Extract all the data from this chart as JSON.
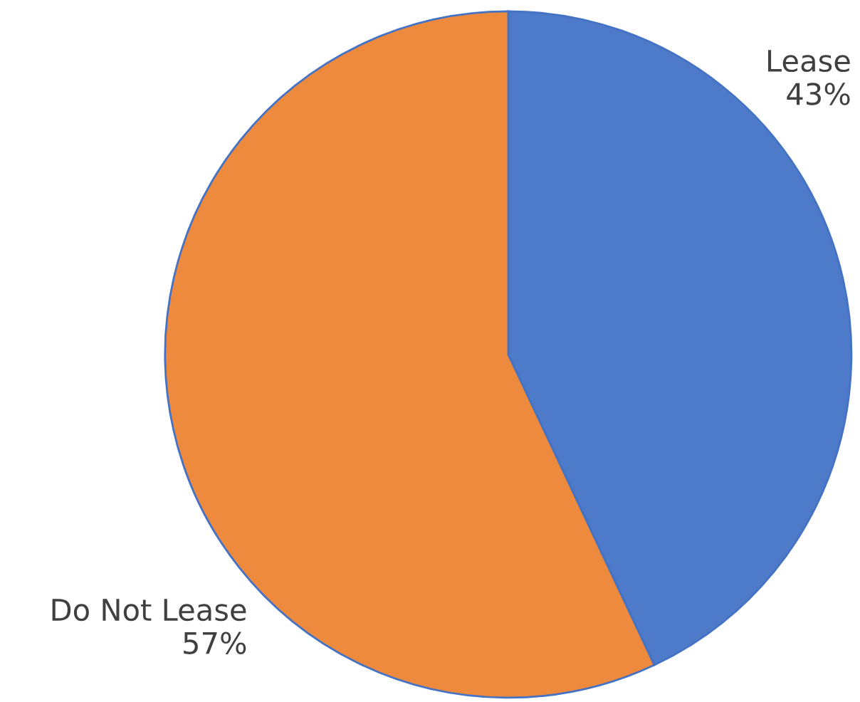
{
  "chart_data": {
    "type": "pie",
    "categories": [
      "Lease",
      "Do Not Lease"
    ],
    "values": [
      43,
      57
    ],
    "colors": [
      "#4d7bc9",
      "#ee8a3d"
    ],
    "value_labels": [
      "43%",
      "57%"
    ]
  }
}
